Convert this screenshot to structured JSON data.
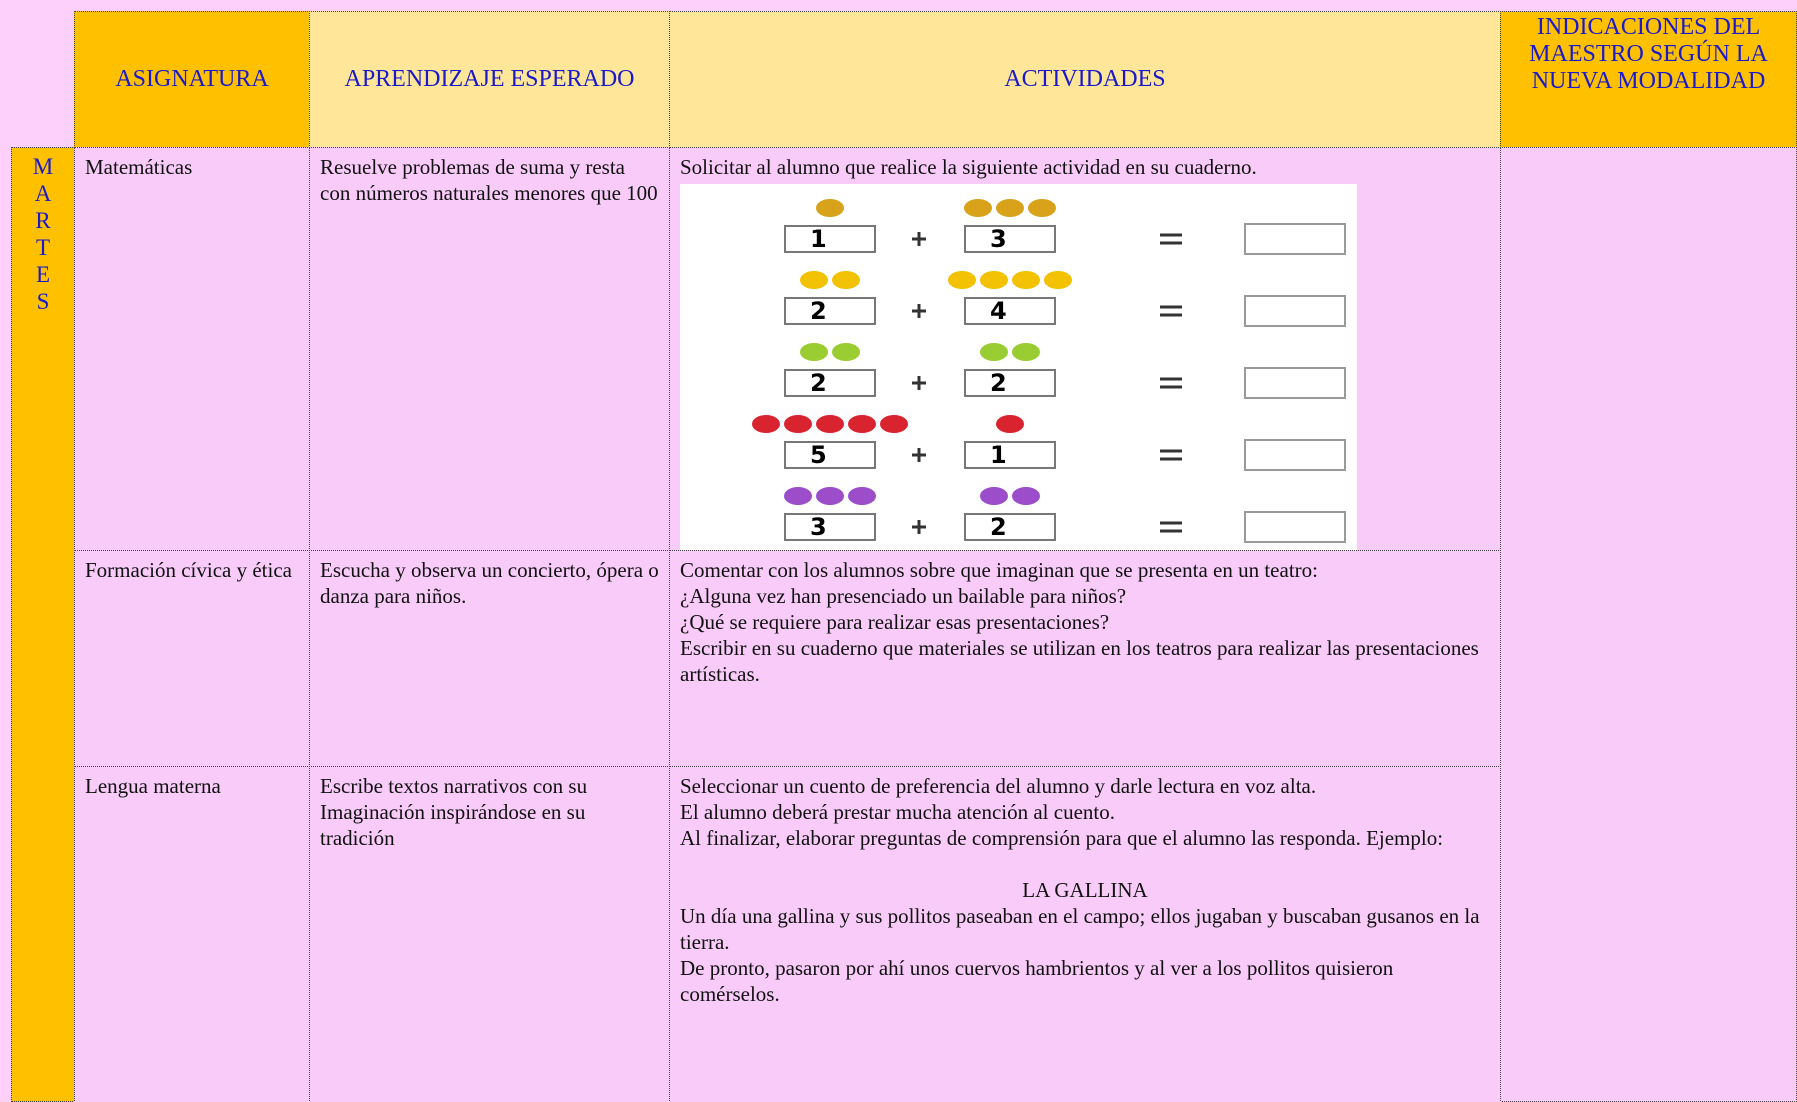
{
  "header": {
    "columns": [
      "ASIGNATURA",
      "APRENDIZAJE ESPERADO",
      "ACTIVIDADES",
      "INDICACIONES DEL MAESTRO SEGÚN LA NUEVA MODALIDAD"
    ]
  },
  "day": "MARTES",
  "rows": [
    {
      "subject": "Matemáticas",
      "learning": [
        "Resuelve problemas de suma y resta con números naturales menores que 100"
      ],
      "activities": [
        "Solicitar al alumno que realice la siguiente actividad en su cuaderno."
      ],
      "exercise": [
        [
          1,
          3
        ],
        [
          2,
          4
        ],
        [
          2,
          2
        ],
        [
          5,
          1
        ],
        [
          3,
          2
        ]
      ]
    },
    {
      "subject": "Formación cívica y ética",
      "learning": [
        "Escucha y observa un concierto, ópera o danza para niños."
      ],
      "activities": [
        "Comentar con los alumnos sobre que imaginan que se presenta en un teatro:",
        "¿Alguna vez han presenciado un bailable para niños?",
        "¿Qué se requiere para realizar esas presentaciones?",
        "Escribir en su cuaderno que materiales se utilizan en los teatros para realizar las presentaciones artísticas."
      ]
    },
    {
      "subject": "Lengua materna",
      "learning": [
        "Escribe textos narrativos con su",
        "Imaginación inspirándose en su",
        "tradición"
      ],
      "activities": [
        "Seleccionar un cuento de preferencia del alumno y darle lectura en voz alta.",
        "El alumno deberá prestar mucha atención al cuento.",
        "Al finalizar,  elaborar preguntas de comprensión para que el alumno las responda. Ejemplo:"
      ],
      "story_title": "LA GALLINA",
      "story": [
        "Un día una gallina y sus pollitos paseaban en el campo; ellos jugaban y buscaban gusanos en la tierra.",
        "De pronto, pasaron por ahí unos cuervos hambrientos y al ver a los pollitos quisieron comérselos."
      ]
    }
  ]
}
